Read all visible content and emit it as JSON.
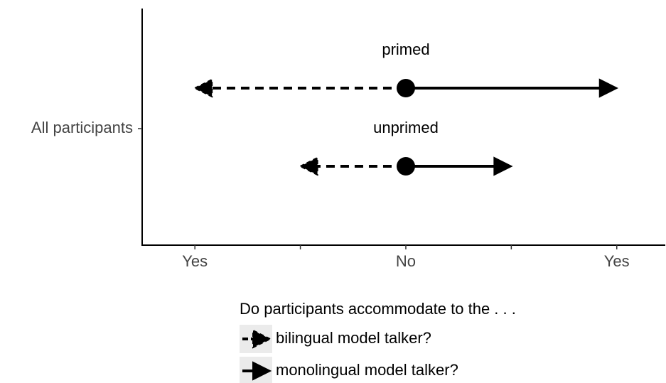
{
  "chart_data": {
    "type": "arrow",
    "y_categories": [
      "All participants"
    ],
    "groups": [
      "primed",
      "unprimed"
    ],
    "origin": 0,
    "series": [
      {
        "name": "bilingual model talker?",
        "color": "#000000",
        "linestyle": "dashed",
        "values": [
          -1,
          -0.5
        ]
      },
      {
        "name": "monolingual model talker?",
        "color": "#000000",
        "linestyle": "solid",
        "values": [
          1,
          0.5
        ]
      }
    ],
    "xlim": [
      -1.25,
      1.23
    ],
    "xticks": [
      {
        "value": -1,
        "label": "Yes"
      },
      {
        "value": 0,
        "label": "No"
      },
      {
        "value": 1,
        "label": "Yes"
      }
    ],
    "xticks_minor": [
      -0.5,
      0.5
    ],
    "legend_title": "Do participants accommodate to the . . ."
  }
}
